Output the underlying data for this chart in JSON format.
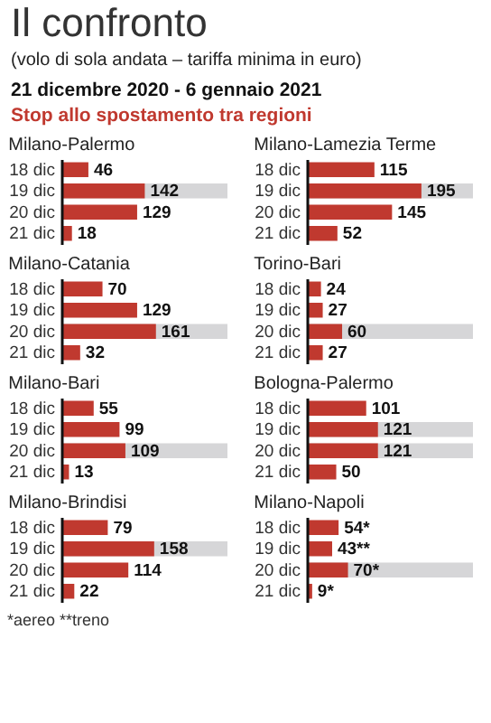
{
  "chart_data": [
    {
      "type": "other",
      "title": "Il confronto",
      "subtitle": "(volo di sola andata – tariffa minima in euro)",
      "annotations": [
        "21 dicembre 2020 - 6 gennaio 2021",
        "Stop allo spostamento tra regioni"
      ]
    },
    {
      "type": "bar",
      "orientation": "horizontal",
      "title": "Milano-Palermo",
      "categories": [
        "18 dic",
        "19 dic",
        "20 dic",
        "21 dic"
      ],
      "values": [
        46,
        142,
        129,
        18
      ],
      "color": "#c0392f",
      "data_labels": true,
      "bands": [
        {
          "axis": "y",
          "from": "19 dic",
          "to": "19 dic",
          "color": "#d6d6d8"
        }
      ]
    },
    {
      "type": "bar",
      "orientation": "horizontal",
      "title": "Milano-Lamezia Terme",
      "categories": [
        "18 dic",
        "19 dic",
        "20 dic",
        "21 dic"
      ],
      "values": [
        115,
        195,
        145,
        52
      ],
      "color": "#c0392f",
      "data_labels": true,
      "bands": [
        {
          "axis": "y",
          "from": "19 dic",
          "to": "19 dic",
          "color": "#d6d6d8"
        }
      ]
    },
    {
      "type": "bar",
      "orientation": "horizontal",
      "title": "Milano-Catania",
      "categories": [
        "18 dic",
        "19 dic",
        "20 dic",
        "21 dic"
      ],
      "values": [
        70,
        129,
        161,
        32
      ],
      "color": "#c0392f",
      "data_labels": true,
      "bands": [
        {
          "axis": "y",
          "from": "20 dic",
          "to": "20 dic",
          "color": "#d6d6d8"
        }
      ]
    },
    {
      "type": "bar",
      "orientation": "horizontal",
      "title": "Torino-Bari",
      "categories": [
        "18 dic",
        "19 dic",
        "20 dic",
        "21 dic"
      ],
      "values": [
        24,
        27,
        60,
        27
      ],
      "color": "#c0392f",
      "data_labels": true,
      "bands": [
        {
          "axis": "y",
          "from": "20 dic",
          "to": "20 dic",
          "color": "#d6d6d8"
        }
      ]
    },
    {
      "type": "bar",
      "orientation": "horizontal",
      "title": "Milano-Bari",
      "categories": [
        "18 dic",
        "19 dic",
        "20 dic",
        "21 dic"
      ],
      "values": [
        55,
        99,
        109,
        13
      ],
      "color": "#c0392f",
      "data_labels": true,
      "bands": [
        {
          "axis": "y",
          "from": "20 dic",
          "to": "20 dic",
          "color": "#d6d6d8"
        }
      ]
    },
    {
      "type": "bar",
      "orientation": "horizontal",
      "title": "Bologna-Palermo",
      "categories": [
        "18 dic",
        "19 dic",
        "20 dic",
        "21 dic"
      ],
      "values": [
        101,
        121,
        121,
        50
      ],
      "color": "#c0392f",
      "data_labels": true,
      "bands": [
        {
          "axis": "y",
          "from": "19 dic",
          "to": "20 dic",
          "color": "#d6d6d8"
        }
      ]
    },
    {
      "type": "bar",
      "orientation": "horizontal",
      "title": "Milano-Brindisi",
      "categories": [
        "18 dic",
        "19 dic",
        "20 dic",
        "21 dic"
      ],
      "values": [
        79,
        158,
        114,
        22
      ],
      "color": "#c0392f",
      "data_labels": true,
      "bands": [
        {
          "axis": "y",
          "from": "19 dic",
          "to": "19 dic",
          "color": "#d6d6d8"
        }
      ]
    },
    {
      "type": "bar",
      "orientation": "horizontal",
      "title": "Milano-Napoli",
      "categories": [
        "18 dic",
        "19 dic",
        "20 dic",
        "21 dic"
      ],
      "values": [
        54,
        43,
        70,
        9
      ],
      "value_labels": [
        "54*",
        "43**",
        "70*",
        "9*"
      ],
      "color": "#c0392f",
      "bands": [
        {
          "axis": "y",
          "from": "20 dic",
          "to": "20 dic",
          "color": "#d6d6d8"
        }
      ],
      "annotations": [
        "*aereo **treno"
      ]
    }
  ]
}
